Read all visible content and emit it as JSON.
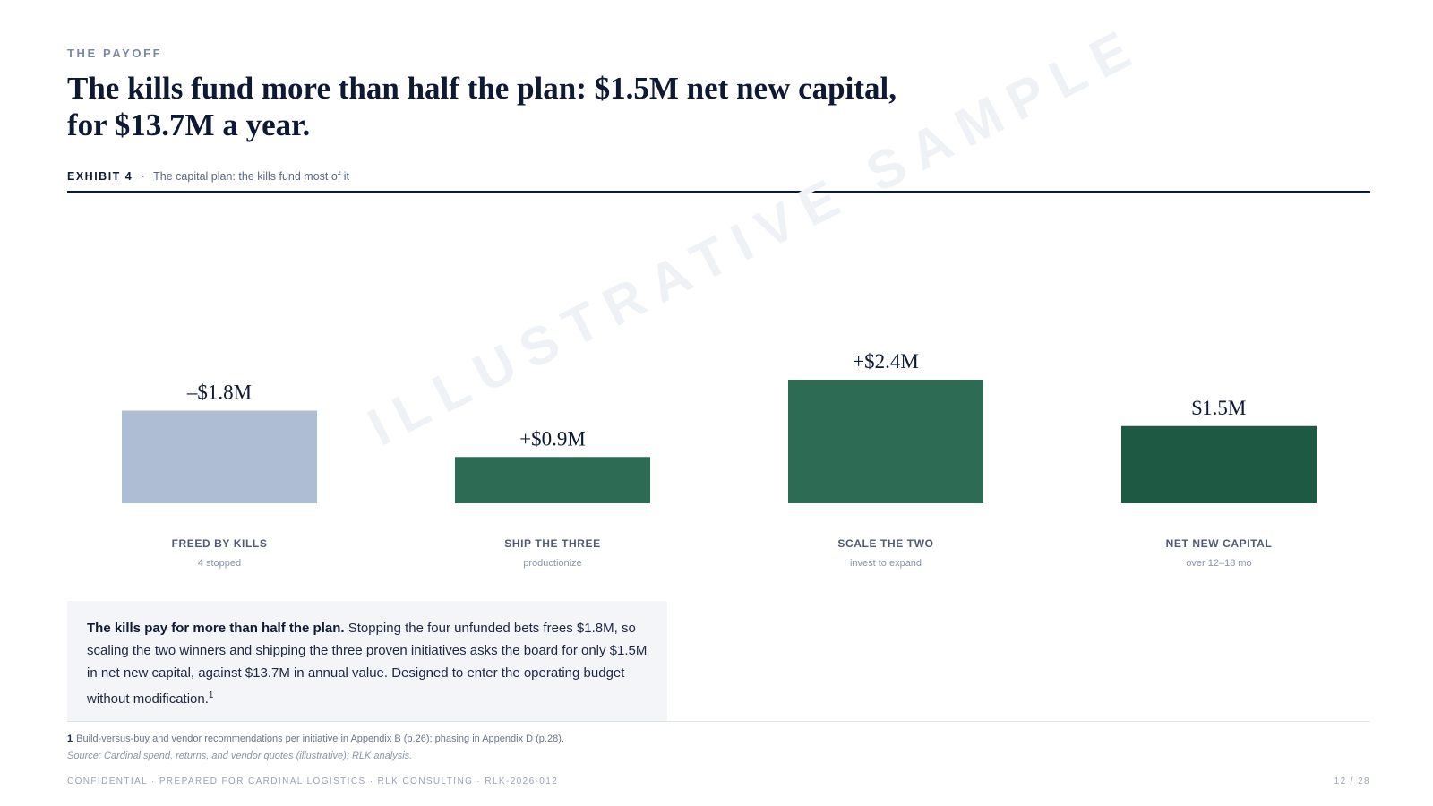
{
  "header": {
    "eyebrow": "THE PAYOFF",
    "title": "The kills fund more than half the plan: $1.5M net new capital, for $13.7M a year."
  },
  "exhibit": {
    "label": "EXHIBIT 4",
    "separator": "·",
    "caption": "The capital plan: the kills fund most of it"
  },
  "watermark": "ILLUSTRATIVE SAMPLE",
  "chart_data": {
    "type": "bar",
    "categories": [
      "FREED BY KILLS",
      "SHIP THE THREE",
      "SCALE THE TWO",
      "NET NEW CAPITAL"
    ],
    "subtitles": [
      "4 stopped",
      "productionize",
      "invest to expand",
      "over 12–18 mo"
    ],
    "values": [
      -1.8,
      0.9,
      2.4,
      1.5
    ],
    "value_labels": [
      "–$1.8M",
      "+$0.9M",
      "+$2.4M",
      "$1.5M"
    ],
    "colors": [
      "#aebdd3",
      "#2e6b55",
      "#2e6b55",
      "#1d5943"
    ],
    "unit": "$M",
    "ylim": [
      0,
      2.4
    ],
    "grid": false
  },
  "callout": {
    "lead": "The kills pay for more than half the plan.",
    "body": "Stopping the four unfunded bets frees $1.8M, so scaling the two winners and shipping the three proven initiatives asks the board for only $1.5M in net new capital, against $13.7M in annual value. Designed to enter the operating budget without modification.",
    "footnote_ref": "1"
  },
  "footnote": {
    "number": "1",
    "text": "Build-versus-buy and vendor recommendations per initiative in Appendix B (p.26); phasing in Appendix D (p.28)."
  },
  "source": "Source: Cardinal spend, returns, and vendor quotes (illustrative); RLK analysis.",
  "footer": {
    "confidential": "CONFIDENTIAL · PREPARED FOR CARDINAL LOGISTICS · RLK CONSULTING · RLK-2026-012",
    "page": "12 / 28"
  }
}
